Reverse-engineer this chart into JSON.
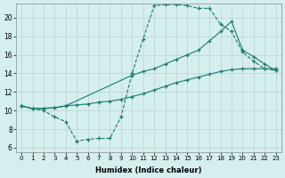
{
  "xlabel": "Humidex (Indice chaleur)",
  "ylabel": "",
  "background_color": "#d5eeee",
  "line_color": "#1a7a6e",
  "grid_color": "#c2dada",
  "xlim": [
    -0.5,
    23.5
  ],
  "ylim": [
    5.5,
    21.5
  ],
  "xticks": [
    0,
    1,
    2,
    3,
    4,
    5,
    6,
    7,
    8,
    9,
    10,
    11,
    12,
    13,
    14,
    15,
    16,
    17,
    18,
    19,
    20,
    21,
    22,
    23
  ],
  "yticks": [
    6,
    8,
    10,
    12,
    14,
    16,
    18,
    20
  ],
  "curve1_x": [
    0,
    1,
    2,
    3,
    4,
    5,
    6,
    7,
    8,
    9,
    10,
    11,
    12,
    13,
    14,
    15,
    16,
    17,
    18,
    19,
    20,
    21,
    22,
    23
  ],
  "curve1_y": [
    10.5,
    10.2,
    10.0,
    9.3,
    8.8,
    6.7,
    6.9,
    7.0,
    7.0,
    9.3,
    14.0,
    17.7,
    21.3,
    21.4,
    21.4,
    21.3,
    21.0,
    21.0,
    19.3,
    18.5,
    16.3,
    15.3,
    14.5,
    14.3
  ],
  "curve2_x": [
    0,
    1,
    3,
    4,
    10,
    11,
    12,
    13,
    14,
    15,
    16,
    17,
    18,
    19,
    20,
    21,
    22,
    23
  ],
  "curve2_y": [
    10.5,
    10.2,
    10.3,
    10.5,
    13.8,
    14.2,
    14.5,
    15.0,
    15.5,
    16.0,
    16.5,
    17.5,
    18.5,
    19.6,
    16.5,
    15.8,
    15.0,
    14.3
  ],
  "curve3_x": [
    0,
    1,
    2,
    3,
    4,
    5,
    6,
    7,
    8,
    9,
    10,
    11,
    12,
    13,
    14,
    15,
    16,
    17,
    18,
    19,
    20,
    21,
    22,
    23
  ],
  "curve3_y": [
    10.5,
    10.2,
    10.2,
    10.3,
    10.5,
    10.6,
    10.7,
    10.9,
    11.0,
    11.2,
    11.5,
    11.8,
    12.2,
    12.6,
    13.0,
    13.3,
    13.6,
    13.9,
    14.2,
    14.4,
    14.5,
    14.5,
    14.5,
    14.5
  ]
}
